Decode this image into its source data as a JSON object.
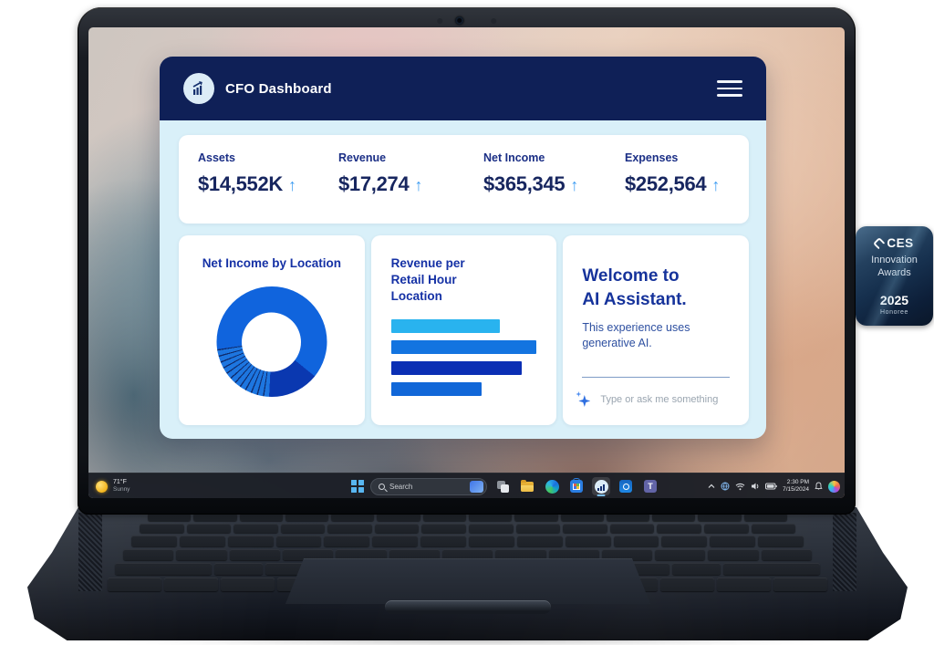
{
  "app": {
    "header": {
      "title": "CFO Dashboard"
    },
    "stats": [
      {
        "label": "Assets",
        "value": "$14,552K",
        "trend": "up"
      },
      {
        "label": "Revenue",
        "value": "$17,274",
        "trend": "up"
      },
      {
        "label": "Net Income",
        "value": "$365,345",
        "trend": "up"
      },
      {
        "label": "Expenses",
        "value": "$252,564",
        "trend": "up"
      }
    ],
    "trend_up_glyph": "↑",
    "assistant": {
      "title_line1": "Welcome to",
      "title_line2": "AI Assistant.",
      "body": "This experience uses generative AI.",
      "placeholder": "Type or ask me something"
    },
    "colors": {
      "header_bg": "#0f2057",
      "body_bg": "#d9f0f9",
      "accent_arrow": "#3f9df2",
      "title_blue": "#1531a5",
      "value_navy": "#17265f"
    }
  },
  "chart_data": [
    {
      "type": "donut",
      "title": "Net Income by Location",
      "segments": [
        {
          "name": "primary",
          "value": 63,
          "color": "#1064dd"
        },
        {
          "name": "secondary",
          "value": 15,
          "color": "#0a38b0"
        },
        {
          "name": "detail-slices",
          "value": 22,
          "color": "#1d76e0",
          "slices": 12
        }
      ],
      "start_angle_deg": 262,
      "slice_gap_color": "#0f2c6e",
      "legend": false
    },
    {
      "type": "bar",
      "title": "Revenue per Retail Hour Location",
      "orientation": "horizontal",
      "values": [
        75,
        100,
        90,
        62
      ],
      "colors": [
        "#29b3ef",
        "#1374e0",
        "#0b2fb4",
        "#1167d8"
      ],
      "value_max": 100,
      "axis_labels": false
    }
  ],
  "taskbar": {
    "weather": {
      "temperature": "71°F",
      "condition": "Sunny"
    },
    "search": {
      "placeholder": "Search"
    },
    "apps": [
      "task-view",
      "file-explorer",
      "edge",
      "microsoft-store",
      "cfo-dashboard",
      "outlook",
      "teams"
    ],
    "active_app": "cfo-dashboard",
    "tray": {
      "time": "2:30 PM",
      "date": "7/15/2024"
    }
  },
  "badge": {
    "brand": "CES",
    "line1": "Innovation",
    "line2": "Awards",
    "year": "2025",
    "honoree": "Honoree"
  }
}
